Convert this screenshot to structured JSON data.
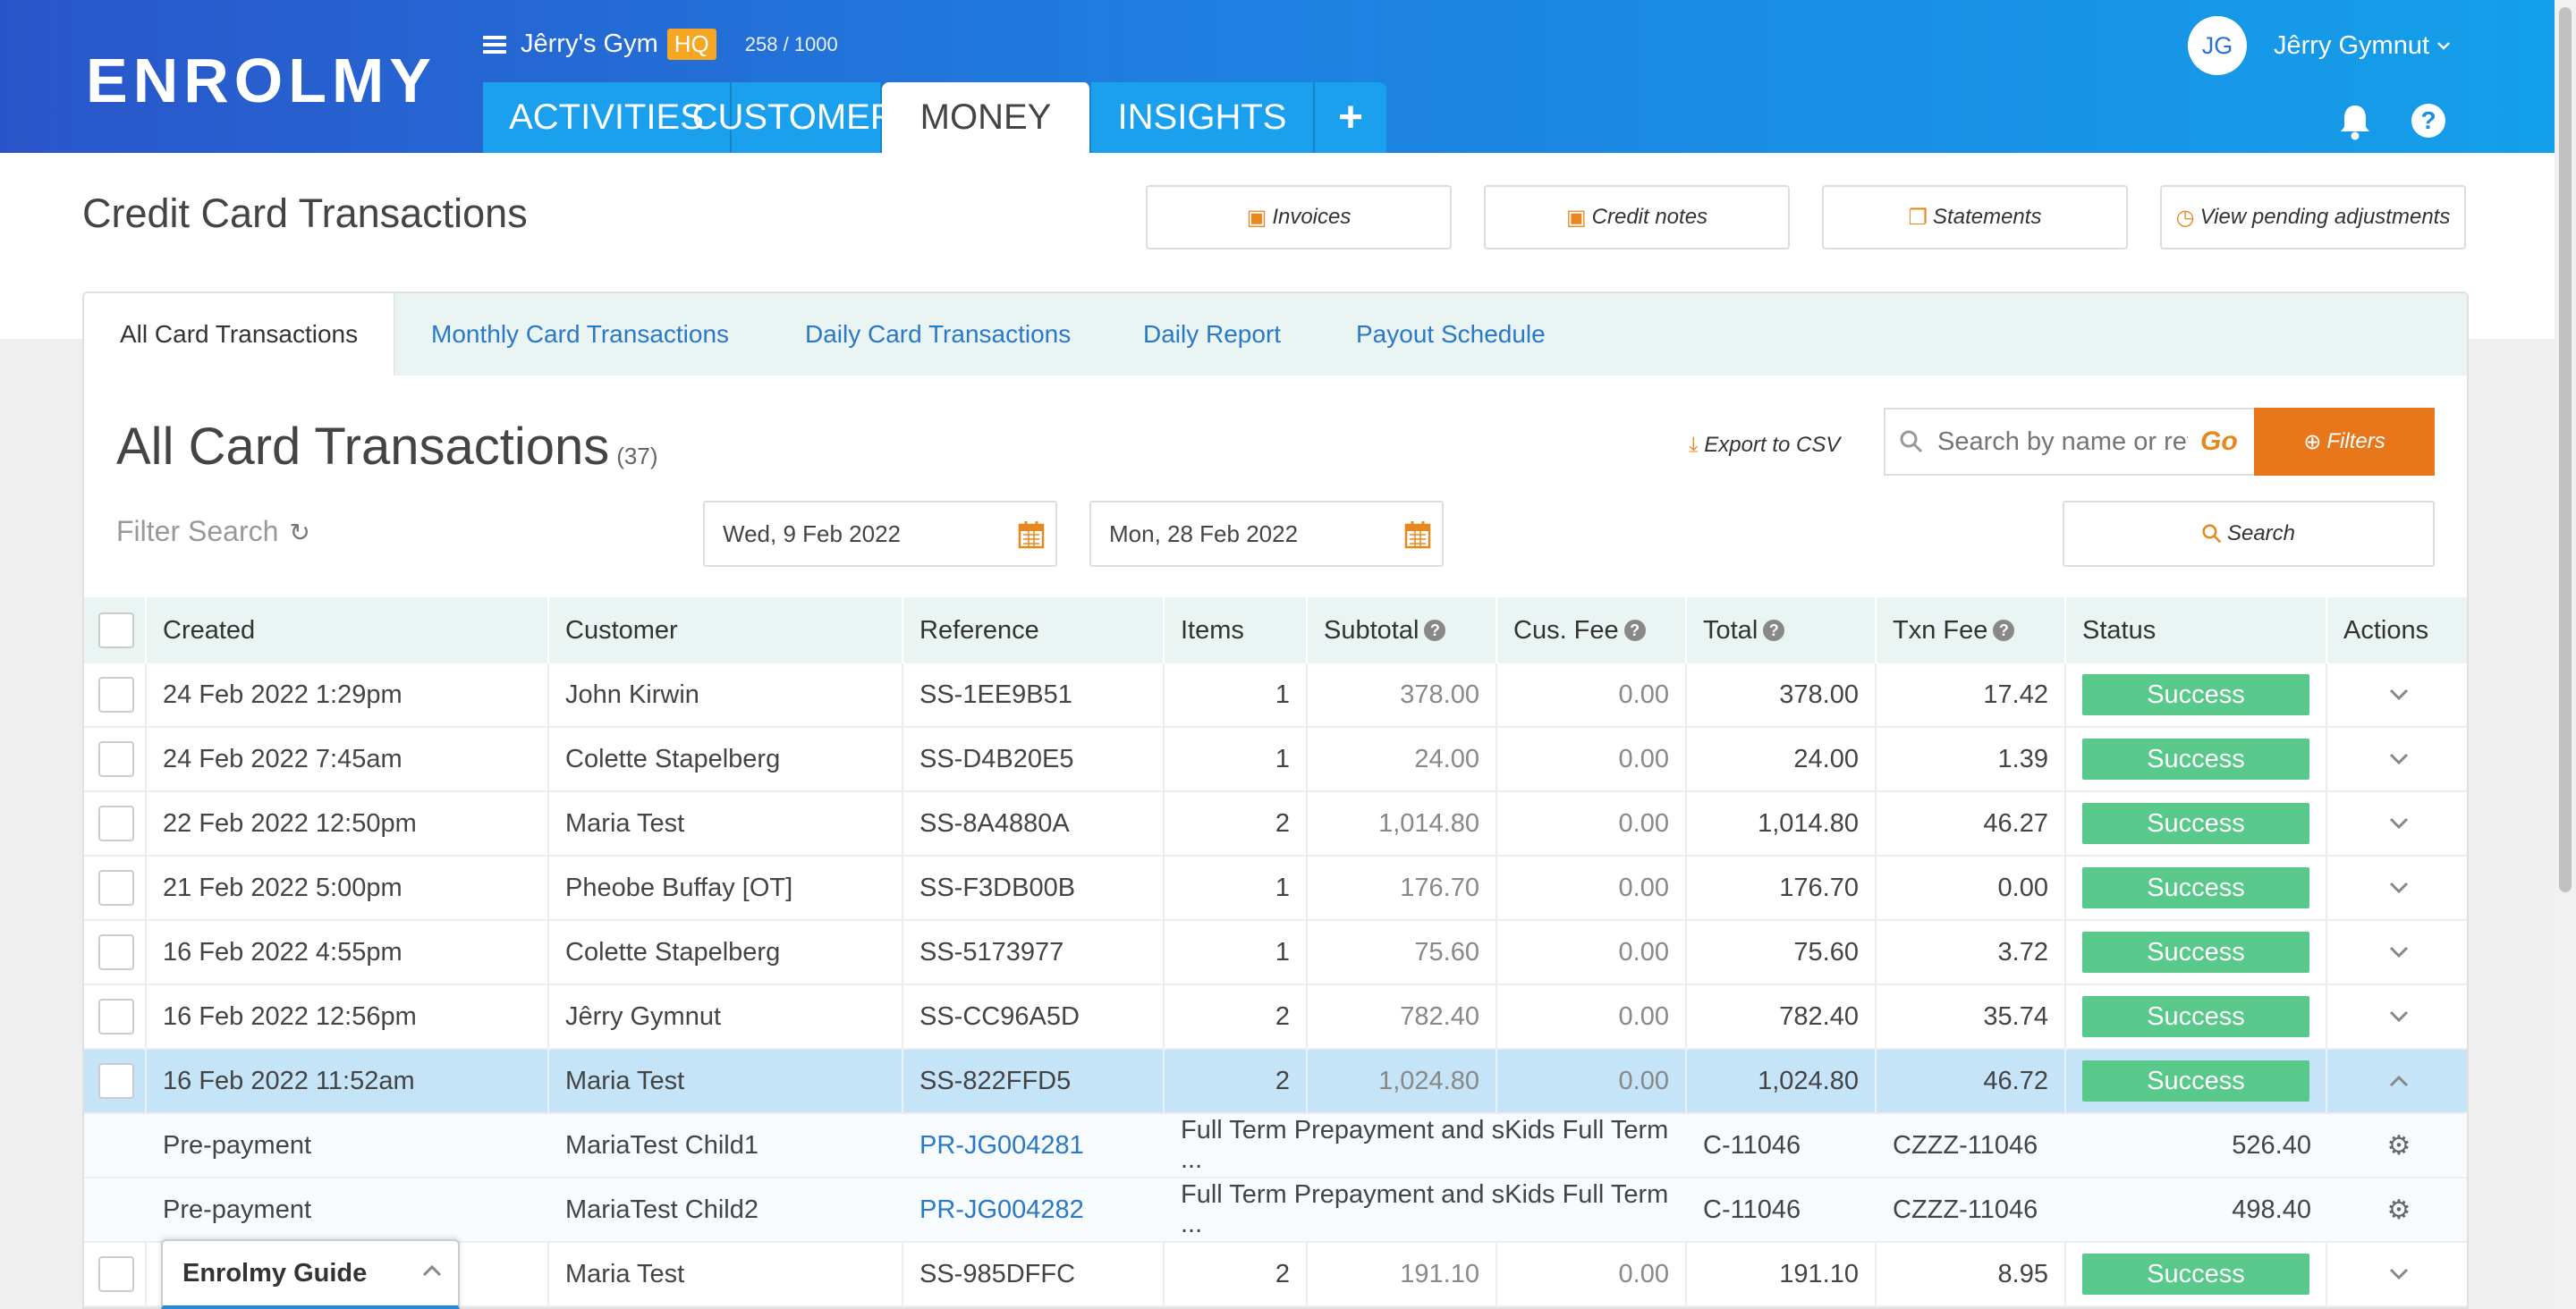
{
  "brand": {
    "logo": "ENROLMY"
  },
  "gym": {
    "name": "Jêrry's Gym",
    "badge": "HQ",
    "count": "258 / 1000"
  },
  "nav": {
    "tabs": [
      "ACTIVITIES",
      "CUSTOMERS",
      "MONEY",
      "INSIGHTS"
    ],
    "active": "MONEY",
    "plus": "+"
  },
  "user": {
    "initials": "JG",
    "name": "Jêrry Gymnut"
  },
  "page": {
    "title": "Credit Card Transactions",
    "buttons": {
      "invoices": "Invoices",
      "credit_notes": "Credit notes",
      "statements": "Statements",
      "pending": "View pending adjustments"
    }
  },
  "subtabs": [
    "All Card Transactions",
    "Monthly Card Transactions",
    "Daily Card Transactions",
    "Daily Report",
    "Payout Schedule"
  ],
  "section": {
    "title": "All Card Transactions",
    "count": "(37)",
    "export": "Export to CSV",
    "search_placeholder": "Search by name or refe",
    "go": "Go",
    "filters": "Filters",
    "filter_search": "Filter Search",
    "date_from": "Wed, 9 Feb 2022",
    "date_to": "Mon, 28 Feb 2022",
    "search_btn": "Search"
  },
  "table": {
    "headers": {
      "created": "Created",
      "customer": "Customer",
      "reference": "Reference",
      "items": "Items",
      "subtotal": "Subtotal",
      "cus_fee": "Cus. Fee",
      "total": "Total",
      "txn_fee": "Txn Fee",
      "status": "Status",
      "actions": "Actions"
    },
    "rows": [
      {
        "created": "24 Feb 2022 1:29pm",
        "customer": "John Kirwin",
        "reference": "SS-1EE9B51",
        "items": "1",
        "subtotal": "378.00",
        "cus_fee": "0.00",
        "total": "378.00",
        "txn_fee": "17.42",
        "status": "Success"
      },
      {
        "created": "24 Feb 2022 7:45am",
        "customer": "Colette Stapelberg",
        "reference": "SS-D4B20E5",
        "items": "1",
        "subtotal": "24.00",
        "cus_fee": "0.00",
        "total": "24.00",
        "txn_fee": "1.39",
        "status": "Success"
      },
      {
        "created": "22 Feb 2022 12:50pm",
        "customer": "Maria Test",
        "reference": "SS-8A4880A",
        "items": "2",
        "subtotal": "1,014.80",
        "cus_fee": "0.00",
        "total": "1,014.80",
        "txn_fee": "46.27",
        "status": "Success"
      },
      {
        "created": "21 Feb 2022 5:00pm",
        "customer": "Pheobe Buffay [OT]",
        "reference": "SS-F3DB00B",
        "items": "1",
        "subtotal": "176.70",
        "cus_fee": "0.00",
        "total": "176.70",
        "txn_fee": "0.00",
        "status": "Success"
      },
      {
        "created": "16 Feb 2022 4:55pm",
        "customer": "Colette Stapelberg",
        "reference": "SS-5173977",
        "items": "1",
        "subtotal": "75.60",
        "cus_fee": "0.00",
        "total": "75.60",
        "txn_fee": "3.72",
        "status": "Success"
      },
      {
        "created": "16 Feb 2022 12:56pm",
        "customer": "Jêrry Gymnut",
        "reference": "SS-CC96A5D",
        "items": "2",
        "subtotal": "782.40",
        "cus_fee": "0.00",
        "total": "782.40",
        "txn_fee": "35.74",
        "status": "Success"
      },
      {
        "created": "16 Feb 2022 11:52am",
        "customer": "Maria Test",
        "reference": "SS-822FFD5",
        "items": "2",
        "subtotal": "1,024.80",
        "cus_fee": "0.00",
        "total": "1,024.80",
        "txn_fee": "46.72",
        "status": "Success"
      }
    ],
    "subrows": [
      {
        "type": "Pre-payment",
        "child": "MariaTest Child1",
        "link": "PR-JG004281",
        "desc": "Full Term Prepayment and sKids Full Term ...",
        "code1": "C-11046",
        "code2": "CZZZ-11046",
        "amount": "526.40"
      },
      {
        "type": "Pre-payment",
        "child": "MariaTest Child2",
        "link": "PR-JG004282",
        "desc": "Full Term Prepayment and sKids Full Term ...",
        "code1": "C-11046",
        "code2": "CZZZ-11046",
        "amount": "498.40"
      }
    ],
    "last_row": {
      "customer": "Maria Test",
      "reference": "SS-985DFFC",
      "items": "2",
      "subtotal": "191.10",
      "cus_fee": "0.00",
      "total": "191.10",
      "txn_fee": "8.95",
      "status": "Success"
    }
  },
  "guide": {
    "label": "Enrolmy Guide"
  },
  "colors": {
    "accent_orange": "#e8761a",
    "success": "#58c98a",
    "link": "#2a79c9",
    "highlight": "#c5e4f7"
  }
}
